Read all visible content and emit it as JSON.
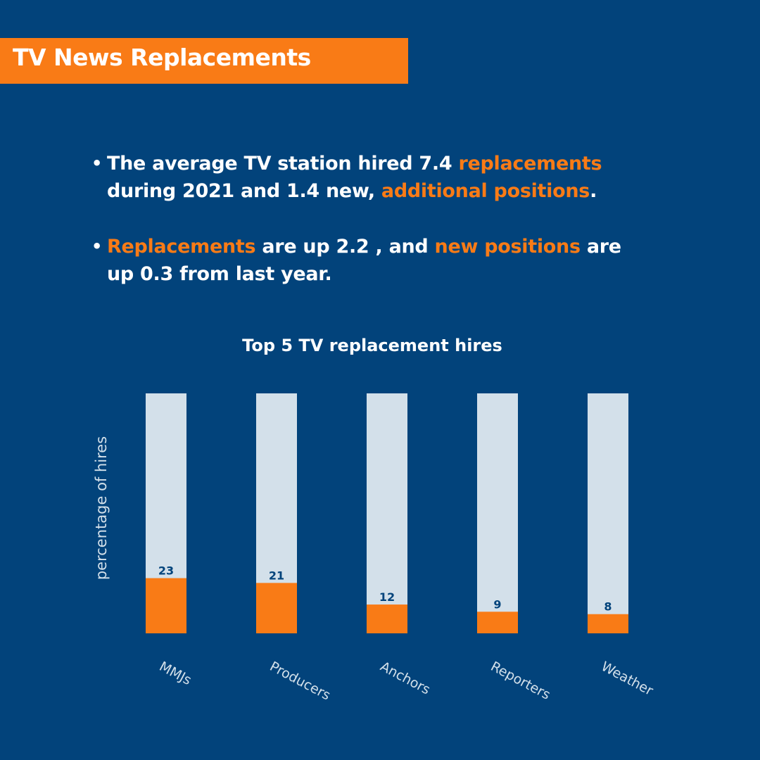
{
  "colors": {
    "background": "#02437b",
    "accent": "#f97b16",
    "text": "#ffffff",
    "bar_track": "#d3e0ea",
    "data_label": "#02437b",
    "axis_label": "#d3e0ea"
  },
  "header": {
    "title": "TV News Replacements"
  },
  "bullets": [
    {
      "lines": [
        [
          {
            "text": "The average TV station hired 7.4 ",
            "highlight": false
          },
          {
            "text": "replacements",
            "highlight": true
          }
        ],
        [
          {
            "text": "during 2021 and 1.4 new, ",
            "highlight": false
          },
          {
            "text": "additional positions",
            "highlight": true
          },
          {
            "text": ".",
            "highlight": false
          }
        ]
      ]
    },
    {
      "lines": [
        [
          {
            "text": "Replacements",
            "highlight": true
          },
          {
            "text": " are up 2.2 , and ",
            "highlight": false
          },
          {
            "text": "new positions",
            "highlight": true
          },
          {
            "text": " are",
            "highlight": false
          }
        ],
        [
          {
            "text": "up 0.3 from last year.",
            "highlight": false
          }
        ]
      ]
    }
  ],
  "chart_data": {
    "type": "bar",
    "title": "Top 5 TV replacement hires",
    "xlabel": "",
    "ylabel": "percentage of hires",
    "categories": [
      "MMJs",
      "Producers",
      "Anchors",
      "Reporters",
      "Weather"
    ],
    "values": [
      23,
      21,
      12,
      9,
      8
    ],
    "ylim": [
      0,
      100
    ],
    "grid": false,
    "legend": "none",
    "bar_color": "#f97b16",
    "track_color": "#d3e0ea"
  }
}
